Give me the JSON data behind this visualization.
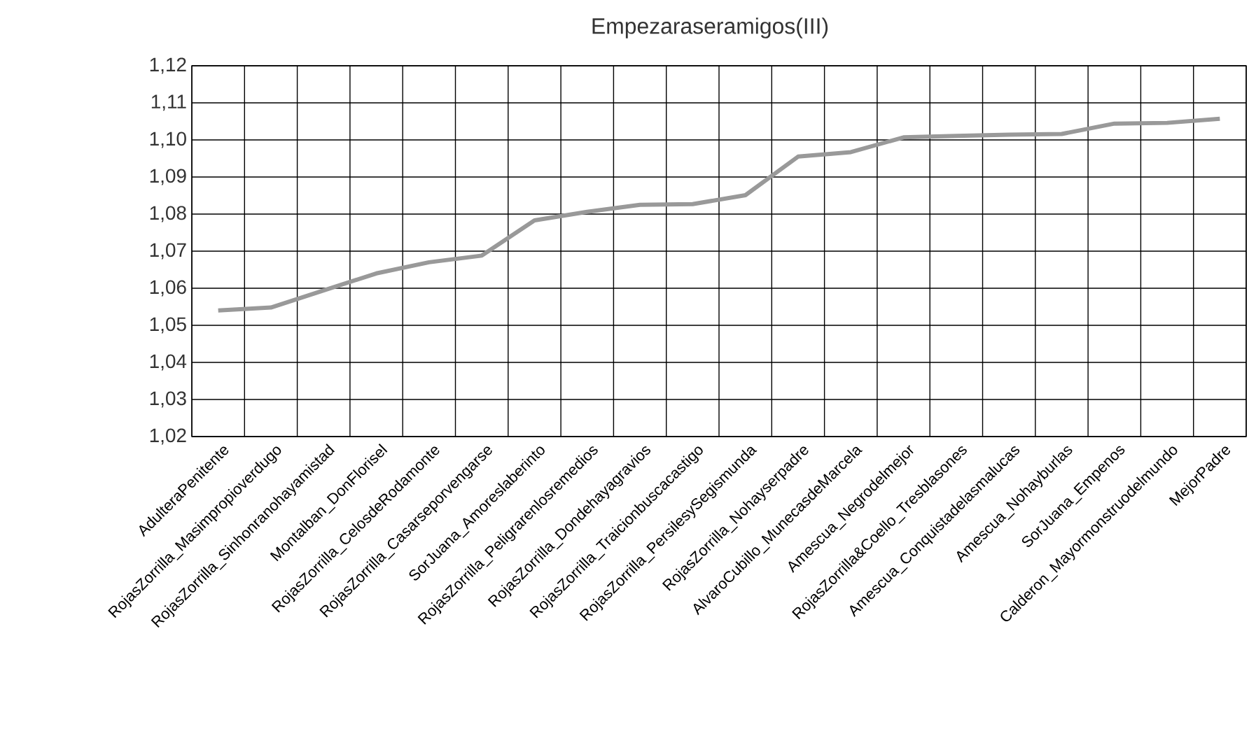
{
  "chart_data": {
    "type": "line",
    "title": "Empezaraseramigos(III)",
    "categories": [
      "AdulteraPenitente",
      "RojasZorrilla_Masimpropioverdugo",
      "RojasZorrilla_Sinhonranohayamistad",
      "Montalban_DonFlorisel",
      "RojasZorrilla_CelosdeRodamonte",
      "RojasZorrilla_Casarseporvengarse",
      "SorJuana_Amoreslaberinto",
      "RojasZorrilla_Peligrarenlosremedios",
      "RojasZorrilla_Dondehayagravios",
      "RojasZorrilla_Traicionbuscacastigo",
      "RojasZorrilla_PersilesySegismunda",
      "RojasZorrilla_Nohayserpadre",
      "AlvaroCubillo_MunecasdeMarcela",
      "Amescua_Negrodelmejor",
      "RojasZorrilla&Coello_Tresblasones",
      "Amescua_Conquistadelasmalucas",
      "Amescua_Nohayburlas",
      "SorJuana_Empenos",
      "Calderon_Mayormonstruodelmundo",
      "MejorPadre"
    ],
    "values": [
      1.054,
      1.0548,
      1.0594,
      1.064,
      1.067,
      1.0688,
      1.0783,
      1.0806,
      1.0825,
      1.0827,
      1.0851,
      1.0955,
      1.0967,
      1.1007,
      1.1011,
      1.1014,
      1.1016,
      1.1044,
      1.1046,
      1.1057
    ],
    "color": "#999999",
    "ylim": [
      1.02,
      1.12
    ],
    "yticks": [
      {
        "value": 1.02,
        "label": "1,02"
      },
      {
        "value": 1.03,
        "label": "1,03"
      },
      {
        "value": 1.04,
        "label": "1,04"
      },
      {
        "value": 1.05,
        "label": "1,05"
      },
      {
        "value": 1.06,
        "label": "1,06"
      },
      {
        "value": 1.07,
        "label": "1,07"
      },
      {
        "value": 1.08,
        "label": "1,08"
      },
      {
        "value": 1.09,
        "label": "1,09"
      },
      {
        "value": 1.1,
        "label": "1,10"
      },
      {
        "value": 1.11,
        "label": "1,11"
      },
      {
        "value": 1.12,
        "label": "1,12"
      }
    ],
    "grid": true,
    "marker": "none",
    "line_style": "solid"
  }
}
